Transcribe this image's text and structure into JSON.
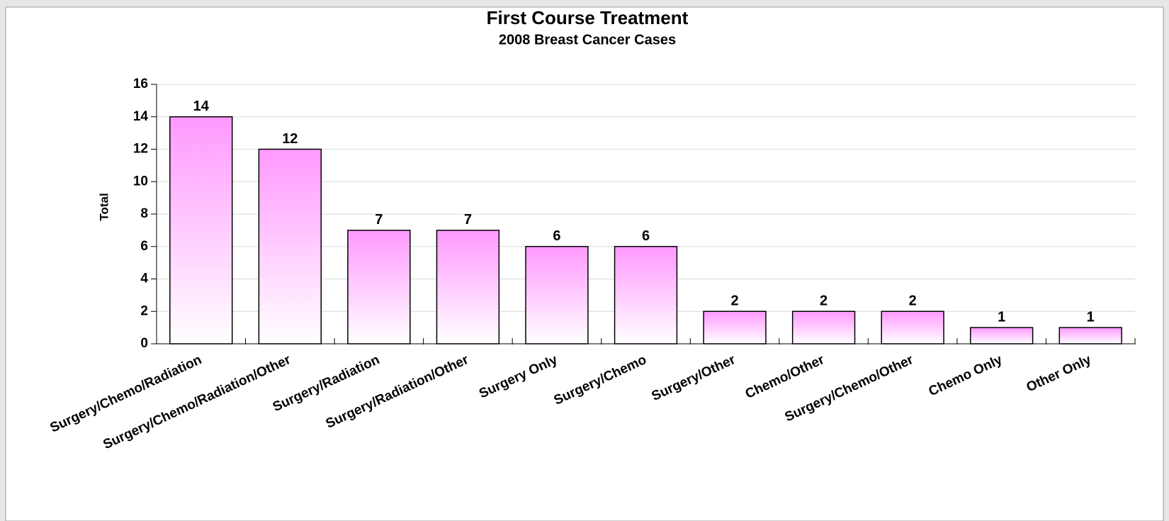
{
  "chart_data": {
    "type": "bar",
    "title": "First Course Treatment",
    "subtitle": "2008 Breast Cancer Cases",
    "y_label": "Total",
    "categories": [
      "Surgery/Chemo/Radiation",
      "Surgery/Chemo/Radiation/Other",
      "Surgery/Radiation",
      "Surgery/Radiation/Other",
      "Surgery Only",
      "Surgery/Chemo",
      "Surgery/Other",
      "Chemo/Other",
      "Surgery/Chemo/Other",
      "Chemo Only",
      "Other Only"
    ],
    "values": [
      14,
      12,
      7,
      7,
      6,
      6,
      2,
      2,
      2,
      1,
      1
    ],
    "color": "#ff99ff",
    "ylim": [
      0,
      16
    ],
    "yticks": [
      0,
      2,
      4,
      6,
      8,
      10,
      12,
      14,
      16
    ],
    "grid": true
  }
}
